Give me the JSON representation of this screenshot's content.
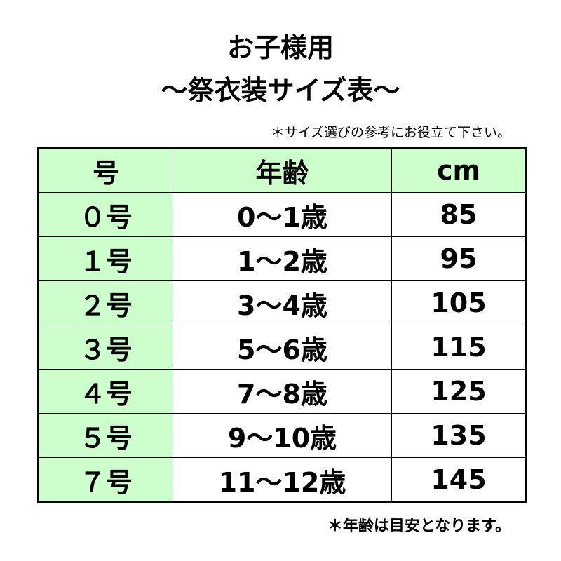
{
  "title_line1": "お子様用",
  "title_line2": "～祭衣装サイズ表～",
  "note_top": "＊サイズ選びの参考にお役立て下さい。",
  "note_bottom": "＊年齢は目安となります。",
  "colors": {
    "header_bg": "#ccffcc",
    "border": "#000000"
  },
  "table": {
    "headers": [
      "号",
      "年齢",
      "cm"
    ],
    "rows": [
      [
        "０号",
        "0～1歳",
        "85"
      ],
      [
        "１号",
        "1～2歳",
        "95"
      ],
      [
        "２号",
        "3～4歳",
        "105"
      ],
      [
        "３号",
        "5～6歳",
        "115"
      ],
      [
        "４号",
        "7～8歳",
        "125"
      ],
      [
        "５号",
        "9～10歳",
        "135"
      ],
      [
        "７号",
        "11～12歳",
        "145"
      ]
    ]
  }
}
